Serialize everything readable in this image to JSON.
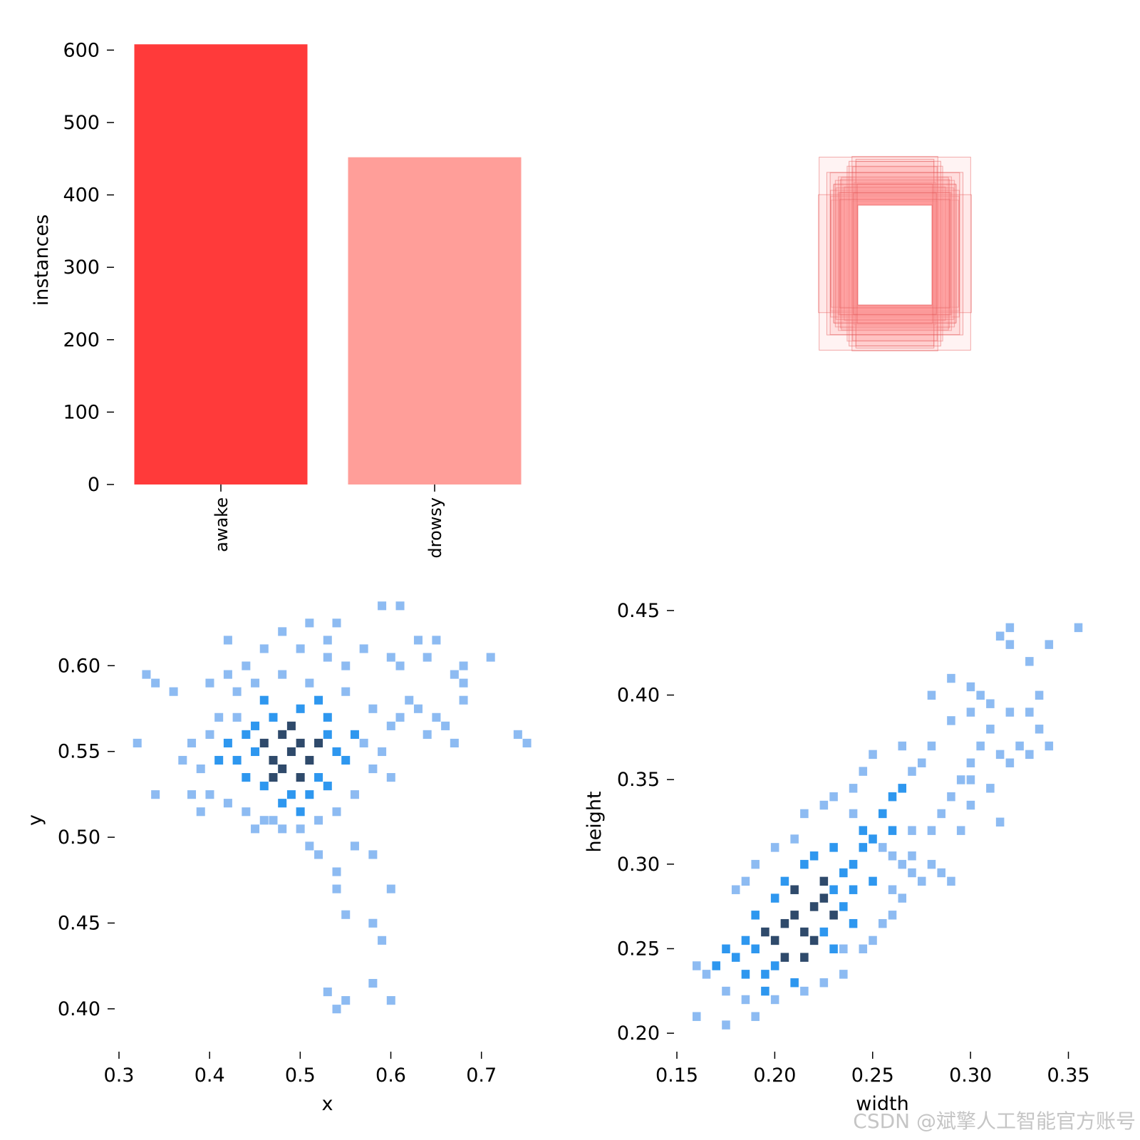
{
  "watermark": "CSDN @斌擎人工智能官方账号",
  "colors": {
    "awake": "#ff3a3a",
    "drowsy": "#ff9e99",
    "box_stroke": "#e24b4b",
    "box_fill": "#ff9e99",
    "hist_light": "#8dbbf2",
    "hist_mid": "#2e97ef",
    "hist_dark": "#2f4a6b"
  },
  "chart_data": [
    {
      "type": "bar",
      "panel": "class-counts",
      "categories": [
        "awake",
        "drowsy"
      ],
      "values": [
        608,
        452
      ],
      "ylabel": "instances",
      "xlabel": "",
      "ylim": [
        0,
        620
      ],
      "yticks": [
        0,
        100,
        200,
        300,
        400,
        500,
        600
      ],
      "grid": false
    },
    {
      "type": "box-overlay",
      "panel": "label-boxes",
      "description_axes": "none",
      "box_count_drawn": 30
    },
    {
      "type": "heatmap",
      "panel": "x-y-histogram",
      "xlabel": "x",
      "ylabel": "y",
      "xlim": [
        0.3,
        0.76
      ],
      "ylim": [
        0.385,
        0.635
      ],
      "xticks": [
        "0.3",
        "0.4",
        "0.5",
        "0.6",
        "0.7"
      ],
      "yticks": [
        "0.40",
        "0.45",
        "0.50",
        "0.55",
        "0.60"
      ],
      "bin_size": [
        0.009,
        0.0048
      ],
      "center": [
        0.49,
        0.55
      ],
      "cells": [
        [
          0.49,
          0.55,
          3
        ],
        [
          0.47,
          0.545,
          3
        ],
        [
          0.5,
          0.555,
          3
        ],
        [
          0.48,
          0.54,
          3
        ],
        [
          0.51,
          0.545,
          3
        ],
        [
          0.46,
          0.555,
          3
        ],
        [
          0.48,
          0.56,
          3
        ],
        [
          0.5,
          0.535,
          3
        ],
        [
          0.52,
          0.555,
          3
        ],
        [
          0.47,
          0.535,
          3
        ],
        [
          0.49,
          0.565,
          3
        ],
        [
          0.45,
          0.55,
          2
        ],
        [
          0.44,
          0.56,
          2
        ],
        [
          0.43,
          0.545,
          2
        ],
        [
          0.53,
          0.56,
          2
        ],
        [
          0.54,
          0.55,
          2
        ],
        [
          0.52,
          0.535,
          2
        ],
        [
          0.51,
          0.525,
          2
        ],
        [
          0.49,
          0.525,
          2
        ],
        [
          0.46,
          0.53,
          2
        ],
        [
          0.45,
          0.565,
          2
        ],
        [
          0.47,
          0.57,
          2
        ],
        [
          0.5,
          0.575,
          2
        ],
        [
          0.53,
          0.57,
          2
        ],
        [
          0.55,
          0.545,
          2
        ],
        [
          0.44,
          0.535,
          2
        ],
        [
          0.42,
          0.555,
          2
        ],
        [
          0.48,
          0.52,
          2
        ],
        [
          0.53,
          0.53,
          2
        ],
        [
          0.56,
          0.56,
          2
        ],
        [
          0.41,
          0.545,
          2
        ],
        [
          0.5,
          0.515,
          2
        ],
        [
          0.52,
          0.58,
          2
        ],
        [
          0.46,
          0.58,
          2
        ],
        [
          0.4,
          0.56,
          1
        ],
        [
          0.39,
          0.54,
          1
        ],
        [
          0.41,
          0.57,
          1
        ],
        [
          0.38,
          0.555,
          1
        ],
        [
          0.43,
          0.585,
          1
        ],
        [
          0.45,
          0.59,
          1
        ],
        [
          0.48,
          0.595,
          1
        ],
        [
          0.51,
          0.59,
          1
        ],
        [
          0.55,
          0.585,
          1
        ],
        [
          0.58,
          0.575,
          1
        ],
        [
          0.57,
          0.555,
          1
        ],
        [
          0.58,
          0.54,
          1
        ],
        [
          0.56,
          0.525,
          1
        ],
        [
          0.54,
          0.515,
          1
        ],
        [
          0.52,
          0.51,
          1
        ],
        [
          0.47,
          0.51,
          1
        ],
        [
          0.44,
          0.515,
          1
        ],
        [
          0.42,
          0.52,
          1
        ],
        [
          0.4,
          0.525,
          1
        ],
        [
          0.43,
          0.57,
          1
        ],
        [
          0.37,
          0.545,
          1
        ],
        [
          0.6,
          0.565,
          1
        ],
        [
          0.59,
          0.55,
          1
        ],
        [
          0.6,
          0.535,
          1
        ],
        [
          0.62,
          0.58,
          1
        ],
        [
          0.55,
          0.6,
          1
        ],
        [
          0.53,
          0.605,
          1
        ],
        [
          0.44,
          0.6,
          1
        ],
        [
          0.42,
          0.595,
          1
        ],
        [
          0.4,
          0.59,
          1
        ],
        [
          0.34,
          0.59,
          1
        ],
        [
          0.33,
          0.595,
          1
        ],
        [
          0.36,
          0.585,
          1
        ],
        [
          0.32,
          0.555,
          1
        ],
        [
          0.34,
          0.525,
          1
        ],
        [
          0.38,
          0.525,
          1
        ],
        [
          0.39,
          0.515,
          1
        ],
        [
          0.45,
          0.505,
          1
        ],
        [
          0.48,
          0.505,
          1
        ],
        [
          0.46,
          0.51,
          1
        ],
        [
          0.5,
          0.505,
          1
        ],
        [
          0.51,
          0.495,
          1
        ],
        [
          0.52,
          0.49,
          1
        ],
        [
          0.56,
          0.495,
          1
        ],
        [
          0.58,
          0.49,
          1
        ],
        [
          0.54,
          0.48,
          1
        ],
        [
          0.54,
          0.47,
          1
        ],
        [
          0.6,
          0.47,
          1
        ],
        [
          0.55,
          0.455,
          1
        ],
        [
          0.58,
          0.45,
          1
        ],
        [
          0.59,
          0.44,
          1
        ],
        [
          0.58,
          0.415,
          1
        ],
        [
          0.53,
          0.41,
          1
        ],
        [
          0.55,
          0.405,
          1
        ],
        [
          0.54,
          0.4,
          1
        ],
        [
          0.6,
          0.405,
          1
        ],
        [
          0.59,
          0.635,
          1
        ],
        [
          0.61,
          0.635,
          1
        ],
        [
          0.42,
          0.615,
          1
        ],
        [
          0.48,
          0.62,
          1
        ],
        [
          0.51,
          0.625,
          1
        ],
        [
          0.54,
          0.625,
          1
        ],
        [
          0.53,
          0.615,
          1
        ],
        [
          0.63,
          0.615,
          1
        ],
        [
          0.65,
          0.615,
          1
        ],
        [
          0.6,
          0.605,
          1
        ],
        [
          0.61,
          0.6,
          1
        ],
        [
          0.64,
          0.605,
          1
        ],
        [
          0.67,
          0.595,
          1
        ],
        [
          0.68,
          0.6,
          1
        ],
        [
          0.68,
          0.59,
          1
        ],
        [
          0.71,
          0.605,
          1
        ],
        [
          0.68,
          0.58,
          1
        ],
        [
          0.65,
          0.57,
          1
        ],
        [
          0.66,
          0.565,
          1
        ],
        [
          0.67,
          0.555,
          1
        ],
        [
          0.74,
          0.56,
          1
        ],
        [
          0.75,
          0.555,
          1
        ],
        [
          0.57,
          0.61,
          1
        ],
        [
          0.5,
          0.61,
          1
        ],
        [
          0.46,
          0.61,
          1
        ],
        [
          0.61,
          0.57,
          1
        ],
        [
          0.63,
          0.575,
          1
        ],
        [
          0.64,
          0.56,
          1
        ]
      ]
    },
    {
      "type": "heatmap",
      "panel": "width-height-histogram",
      "xlabel": "width",
      "ylabel": "height",
      "xlim": [
        0.15,
        0.36
      ],
      "ylim": [
        0.195,
        0.455
      ],
      "xticks": [
        "0.15",
        "0.20",
        "0.25",
        "0.30",
        "0.35"
      ],
      "yticks": [
        "0.20",
        "0.25",
        "0.30",
        "0.35",
        "0.40",
        "0.45"
      ],
      "bin_size": [
        0.004,
        0.005
      ],
      "center": [
        0.215,
        0.27
      ],
      "cells": [
        [
          0.21,
          0.27,
          3
        ],
        [
          0.22,
          0.275,
          3
        ],
        [
          0.205,
          0.265,
          3
        ],
        [
          0.215,
          0.26,
          3
        ],
        [
          0.225,
          0.28,
          3
        ],
        [
          0.2,
          0.255,
          3
        ],
        [
          0.21,
          0.285,
          3
        ],
        [
          0.23,
          0.27,
          3
        ],
        [
          0.195,
          0.26,
          3
        ],
        [
          0.22,
          0.255,
          3
        ],
        [
          0.205,
          0.245,
          3
        ],
        [
          0.225,
          0.29,
          3
        ],
        [
          0.215,
          0.245,
          3
        ],
        [
          0.19,
          0.25,
          2
        ],
        [
          0.185,
          0.255,
          2
        ],
        [
          0.2,
          0.24,
          2
        ],
        [
          0.23,
          0.285,
          2
        ],
        [
          0.235,
          0.295,
          2
        ],
        [
          0.24,
          0.3,
          2
        ],
        [
          0.19,
          0.27,
          2
        ],
        [
          0.2,
          0.28,
          2
        ],
        [
          0.195,
          0.235,
          2
        ],
        [
          0.21,
          0.23,
          2
        ],
        [
          0.225,
          0.26,
          2
        ],
        [
          0.235,
          0.275,
          2
        ],
        [
          0.24,
          0.285,
          2
        ],
        [
          0.18,
          0.245,
          2
        ],
        [
          0.185,
          0.235,
          2
        ],
        [
          0.215,
          0.3,
          2
        ],
        [
          0.205,
          0.29,
          2
        ],
        [
          0.23,
          0.25,
          2
        ],
        [
          0.24,
          0.265,
          2
        ],
        [
          0.245,
          0.31,
          2
        ],
        [
          0.25,
          0.315,
          2
        ],
        [
          0.255,
          0.33,
          2
        ],
        [
          0.26,
          0.34,
          2
        ],
        [
          0.265,
          0.345,
          2
        ],
        [
          0.17,
          0.24,
          2
        ],
        [
          0.175,
          0.25,
          2
        ],
        [
          0.195,
          0.225,
          2
        ],
        [
          0.25,
          0.29,
          2
        ],
        [
          0.22,
          0.305,
          2
        ],
        [
          0.23,
          0.31,
          2
        ],
        [
          0.245,
          0.32,
          2
        ],
        [
          0.26,
          0.32,
          2
        ],
        [
          0.165,
          0.235,
          1
        ],
        [
          0.16,
          0.24,
          1
        ],
        [
          0.175,
          0.225,
          1
        ],
        [
          0.185,
          0.22,
          1
        ],
        [
          0.19,
          0.21,
          1
        ],
        [
          0.175,
          0.205,
          1
        ],
        [
          0.16,
          0.21,
          1
        ],
        [
          0.2,
          0.22,
          1
        ],
        [
          0.215,
          0.225,
          1
        ],
        [
          0.225,
          0.23,
          1
        ],
        [
          0.235,
          0.235,
          1
        ],
        [
          0.245,
          0.25,
          1
        ],
        [
          0.255,
          0.265,
          1
        ],
        [
          0.265,
          0.28,
          1
        ],
        [
          0.275,
          0.29,
          1
        ],
        [
          0.28,
          0.3,
          1
        ],
        [
          0.285,
          0.295,
          1
        ],
        [
          0.27,
          0.305,
          1
        ],
        [
          0.28,
          0.32,
          1
        ],
        [
          0.285,
          0.33,
          1
        ],
        [
          0.29,
          0.34,
          1
        ],
        [
          0.295,
          0.35,
          1
        ],
        [
          0.3,
          0.36,
          1
        ],
        [
          0.305,
          0.37,
          1
        ],
        [
          0.31,
          0.345,
          1
        ],
        [
          0.315,
          0.325,
          1
        ],
        [
          0.32,
          0.36,
          1
        ],
        [
          0.325,
          0.37,
          1
        ],
        [
          0.33,
          0.365,
          1
        ],
        [
          0.335,
          0.38,
          1
        ],
        [
          0.34,
          0.37,
          1
        ],
        [
          0.32,
          0.39,
          1
        ],
        [
          0.33,
          0.39,
          1
        ],
        [
          0.335,
          0.4,
          1
        ],
        [
          0.3,
          0.39,
          1
        ],
        [
          0.29,
          0.385,
          1
        ],
        [
          0.28,
          0.37,
          1
        ],
        [
          0.275,
          0.36,
          1
        ],
        [
          0.27,
          0.355,
          1
        ],
        [
          0.265,
          0.37,
          1
        ],
        [
          0.25,
          0.365,
          1
        ],
        [
          0.245,
          0.355,
          1
        ],
        [
          0.24,
          0.345,
          1
        ],
        [
          0.23,
          0.34,
          1
        ],
        [
          0.225,
          0.335,
          1
        ],
        [
          0.215,
          0.33,
          1
        ],
        [
          0.21,
          0.315,
          1
        ],
        [
          0.2,
          0.31,
          1
        ],
        [
          0.19,
          0.3,
          1
        ],
        [
          0.185,
          0.29,
          1
        ],
        [
          0.18,
          0.285,
          1
        ],
        [
          0.29,
          0.41,
          1
        ],
        [
          0.3,
          0.405,
          1
        ],
        [
          0.305,
          0.4,
          1
        ],
        [
          0.31,
          0.395,
          1
        ],
        [
          0.32,
          0.43,
          1
        ],
        [
          0.315,
          0.435,
          1
        ],
        [
          0.32,
          0.44,
          1
        ],
        [
          0.33,
          0.42,
          1
        ],
        [
          0.34,
          0.43,
          1
        ],
        [
          0.355,
          0.44,
          1
        ],
        [
          0.28,
          0.4,
          1
        ],
        [
          0.255,
          0.31,
          1
        ],
        [
          0.26,
          0.305,
          1
        ],
        [
          0.265,
          0.3,
          1
        ],
        [
          0.27,
          0.295,
          1
        ],
        [
          0.29,
          0.29,
          1
        ],
        [
          0.295,
          0.32,
          1
        ],
        [
          0.3,
          0.335,
          1
        ],
        [
          0.31,
          0.38,
          1
        ],
        [
          0.315,
          0.365,
          1
        ],
        [
          0.24,
          0.33,
          1
        ],
        [
          0.235,
          0.25,
          1
        ],
        [
          0.25,
          0.255,
          1
        ],
        [
          0.26,
          0.27,
          1
        ],
        [
          0.26,
          0.285,
          1
        ],
        [
          0.27,
          0.32,
          1
        ],
        [
          0.3,
          0.35,
          1
        ]
      ]
    }
  ]
}
